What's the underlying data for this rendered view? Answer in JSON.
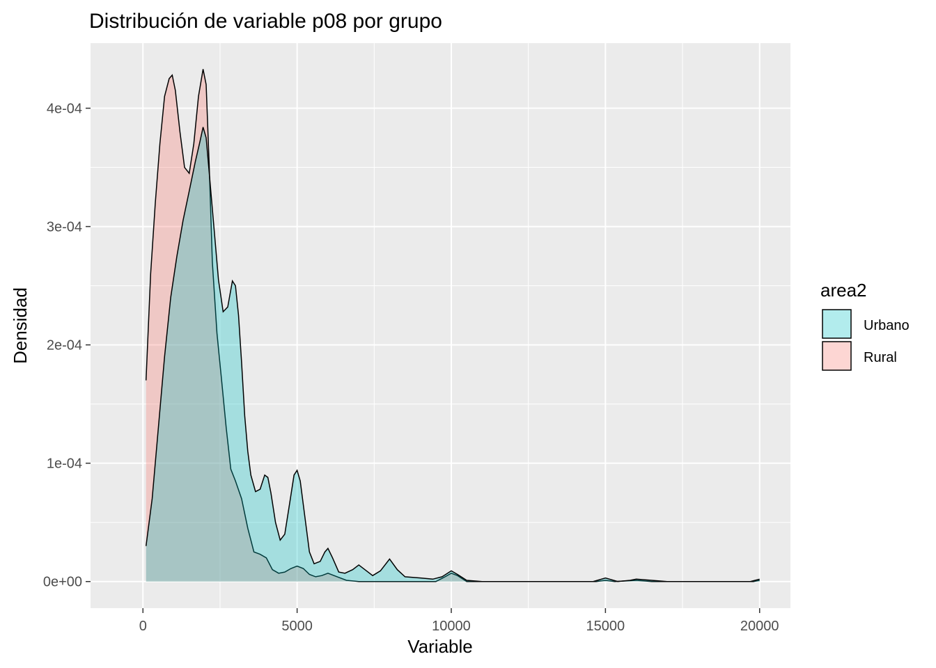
{
  "chart_data": {
    "type": "area",
    "title": "Distribución de variable p08 por grupo",
    "xlabel": "Variable",
    "ylabel": "Densidad",
    "xlim": [
      -1700,
      21000
    ],
    "ylim": [
      -2.25e-05,
      0.000455
    ],
    "x_ticks": [
      0,
      5000,
      10000,
      15000,
      20000
    ],
    "x_tick_labels": [
      "0",
      "5000",
      "10000",
      "15000",
      "20000"
    ],
    "x_minor": [
      2500,
      7500,
      12500,
      17500
    ],
    "y_ticks": [
      0,
      0.0001,
      0.0002,
      0.0003,
      0.0004
    ],
    "y_tick_labels": [
      "0e+00",
      "1e-04",
      "2e-04",
      "3e-04",
      "4e-04"
    ],
    "y_minor": [
      5e-05,
      0.00015,
      0.00025,
      0.00035
    ],
    "grid": true,
    "legend": {
      "title": "area2",
      "position": "right"
    },
    "series": [
      {
        "name": "Urbano",
        "color": "#00BFC4",
        "points": [
          [
            100,
            3e-05
          ],
          [
            300,
            7e-05
          ],
          [
            500,
            0.00013
          ],
          [
            700,
            0.00019
          ],
          [
            900,
            0.00024
          ],
          [
            1100,
            0.000275
          ],
          [
            1300,
            0.000305
          ],
          [
            1500,
            0.00033
          ],
          [
            1700,
            0.000355
          ],
          [
            1850,
            0.000372
          ],
          [
            1950,
            0.000384
          ],
          [
            2050,
            0.000375
          ],
          [
            2150,
            0.000345
          ],
          [
            2300,
            0.0003
          ],
          [
            2450,
            0.000255
          ],
          [
            2600,
            0.000228
          ],
          [
            2750,
            0.000232
          ],
          [
            2900,
            0.000254
          ],
          [
            3000,
            0.00025
          ],
          [
            3100,
            0.000225
          ],
          [
            3200,
            0.000185
          ],
          [
            3300,
            0.00014
          ],
          [
            3400,
            0.00011
          ],
          [
            3500,
            9e-05
          ],
          [
            3650,
            7.6e-05
          ],
          [
            3800,
            7.8e-05
          ],
          [
            3950,
            9e-05
          ],
          [
            4050,
            8.8e-05
          ],
          [
            4150,
            7.5e-05
          ],
          [
            4300,
            5e-05
          ],
          [
            4450,
            3.5e-05
          ],
          [
            4600,
            4e-05
          ],
          [
            4750,
            6.5e-05
          ],
          [
            4900,
            9e-05
          ],
          [
            5000,
            9.4e-05
          ],
          [
            5100,
            8.5e-05
          ],
          [
            5250,
            5.5e-05
          ],
          [
            5400,
            2.5e-05
          ],
          [
            5550,
            1.5e-05
          ],
          [
            5750,
            1.7e-05
          ],
          [
            5900,
            2.5e-05
          ],
          [
            6000,
            2.8e-05
          ],
          [
            6150,
            2e-05
          ],
          [
            6350,
            8e-06
          ],
          [
            6550,
            7e-06
          ],
          [
            6800,
            1e-05
          ],
          [
            7000,
            1.4e-05
          ],
          [
            7200,
            1e-05
          ],
          [
            7450,
            5e-06
          ],
          [
            7700,
            9e-06
          ],
          [
            8000,
            1.9e-05
          ],
          [
            8250,
            1e-05
          ],
          [
            8500,
            4e-06
          ],
          [
            9000,
            3e-06
          ],
          [
            9400,
            2e-06
          ],
          [
            9700,
            4e-06
          ],
          [
            10000,
            9e-06
          ],
          [
            10200,
            6e-06
          ],
          [
            10500,
            1e-06
          ],
          [
            11000,
            0.0
          ],
          [
            12500,
            0.0
          ],
          [
            14600,
            0.0
          ],
          [
            15000,
            3e-06
          ],
          [
            15400,
            0.0
          ],
          [
            15800,
            1e-06
          ],
          [
            16000,
            2e-06
          ],
          [
            16500,
            1e-06
          ],
          [
            17000,
            0.0
          ],
          [
            19700,
            0.0
          ],
          [
            20000,
            2e-06
          ]
        ]
      },
      {
        "name": "Rural",
        "color": "#F8766D",
        "points": [
          [
            100,
            0.00017
          ],
          [
            150,
            0.0002
          ],
          [
            250,
            0.00026
          ],
          [
            400,
            0.00032
          ],
          [
            550,
            0.00037
          ],
          [
            700,
            0.00041
          ],
          [
            850,
            0.000425
          ],
          [
            950,
            0.000428
          ],
          [
            1050,
            0.000415
          ],
          [
            1200,
            0.00038
          ],
          [
            1350,
            0.00035
          ],
          [
            1500,
            0.000345
          ],
          [
            1650,
            0.00037
          ],
          [
            1800,
            0.00041
          ],
          [
            1950,
            0.000433
          ],
          [
            2050,
            0.00042
          ],
          [
            2150,
            0.00035
          ],
          [
            2250,
            0.00027
          ],
          [
            2400,
            0.00021
          ],
          [
            2550,
            0.00017
          ],
          [
            2700,
            0.00013
          ],
          [
            2850,
            9.5e-05
          ],
          [
            3000,
            8.5e-05
          ],
          [
            3200,
            7e-05
          ],
          [
            3400,
            4.5e-05
          ],
          [
            3600,
            2.5e-05
          ],
          [
            3800,
            2.3e-05
          ],
          [
            4000,
            2e-05
          ],
          [
            4200,
            1e-05
          ],
          [
            4400,
            7e-06
          ],
          [
            4600,
            8e-06
          ],
          [
            4800,
            1.1e-05
          ],
          [
            5000,
            1.3e-05
          ],
          [
            5200,
            1.1e-05
          ],
          [
            5400,
            6e-06
          ],
          [
            5600,
            4e-06
          ],
          [
            5800,
            5e-06
          ],
          [
            6000,
            7e-06
          ],
          [
            6300,
            4e-06
          ],
          [
            6600,
            1e-06
          ],
          [
            7000,
            0.0
          ],
          [
            9500,
            0.0
          ],
          [
            9800,
            4e-06
          ],
          [
            10000,
            7e-06
          ],
          [
            10200,
            5e-06
          ],
          [
            10500,
            0.0
          ],
          [
            14700,
            0.0
          ],
          [
            15000,
            1e-06
          ],
          [
            15300,
            0.0
          ],
          [
            16000,
            1e-06
          ],
          [
            16500,
            0.0
          ],
          [
            19800,
            0.0
          ],
          [
            20000,
            1e-06
          ]
        ]
      }
    ]
  }
}
